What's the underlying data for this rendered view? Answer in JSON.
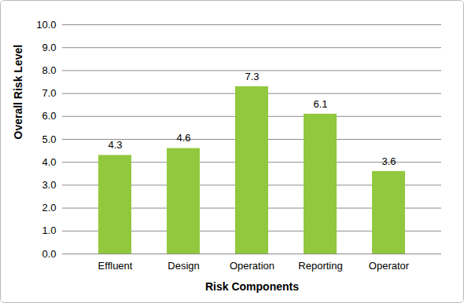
{
  "chart_data": {
    "type": "bar",
    "xlabel": "Risk Components",
    "ylabel": "Overall Risk Level",
    "categories": [
      "Effluent",
      "Design",
      "Operation",
      "Reporting",
      "Operator"
    ],
    "values": [
      4.3,
      4.6,
      7.3,
      6.1,
      3.6
    ],
    "color": "#92c83e",
    "ylim": [
      0,
      10
    ],
    "yticks": [
      {
        "value": 0,
        "label": "0.0"
      },
      {
        "value": 1,
        "label": "1.0"
      },
      {
        "value": 2,
        "label": "2.0"
      },
      {
        "value": 3,
        "label": "3.0"
      },
      {
        "value": 4,
        "label": "4.0"
      },
      {
        "value": 5,
        "label": "5.0"
      },
      {
        "value": 6,
        "label": "6.0"
      },
      {
        "value": 7,
        "label": "7.0"
      },
      {
        "value": 8,
        "label": "8.0"
      },
      {
        "value": 9,
        "label": "9.0"
      },
      {
        "value": 10,
        "label": "10.0"
      }
    ],
    "grid": true,
    "data_labels": true
  }
}
